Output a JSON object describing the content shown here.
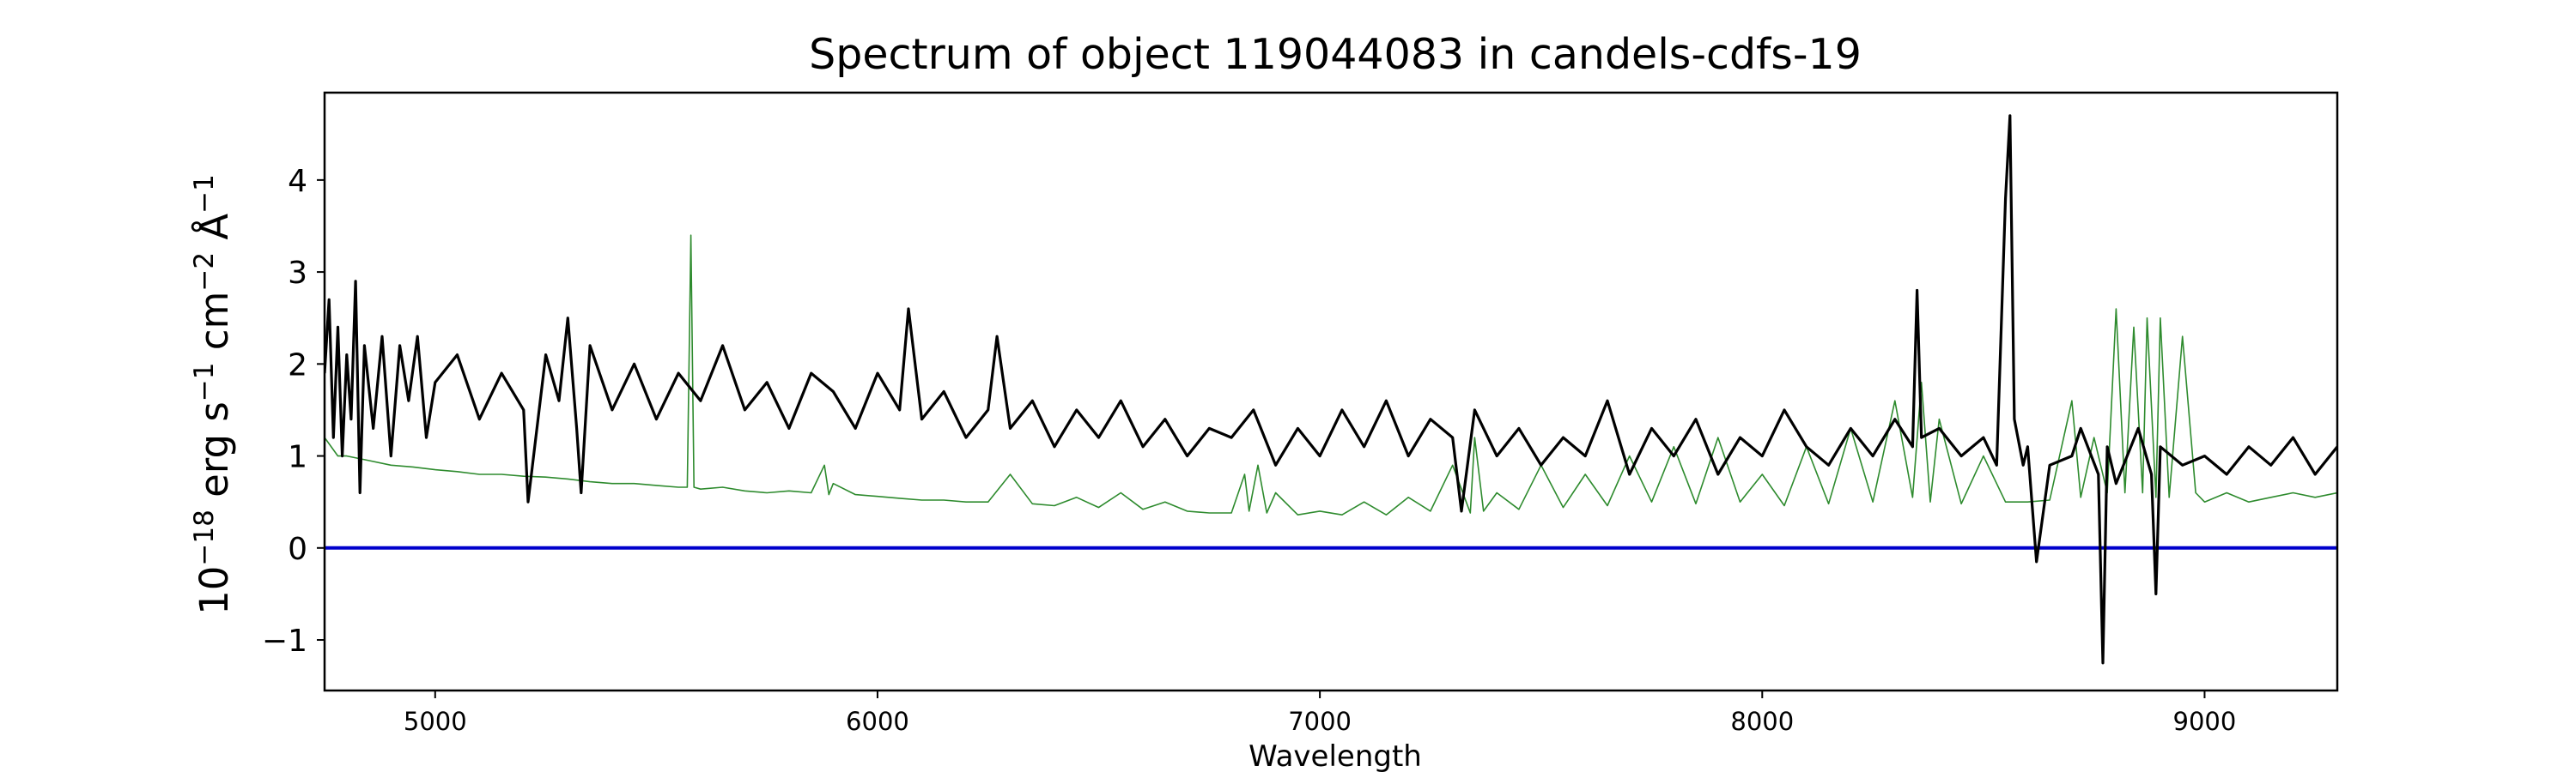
{
  "chart_data": {
    "type": "line",
    "title": "Spectrum of object 119044083 in candels-cdfs-19",
    "xlabel": "Wavelength",
    "ylabel": "10−18 erg s−1 cm−2 Å−1",
    "ylabel_parts": {
      "base": "10",
      "exp1": "−18",
      "t1": " erg s",
      "exp2": "−1",
      "t2": " cm",
      "exp3": "−2",
      "t3": " Å",
      "exp4": "−1"
    },
    "xlim": [
      4750,
      9300
    ],
    "ylim": [
      -1.55,
      4.95
    ],
    "xticks": [
      5000,
      6000,
      7000,
      8000,
      9000
    ],
    "yticks": [
      -1,
      0,
      1,
      2,
      3,
      4
    ],
    "grid": false,
    "legend": "none",
    "series": [
      {
        "role": "flux",
        "color": "#000000",
        "x": [
          4750,
          4760,
          4770,
          4780,
          4790,
          4800,
          4810,
          4820,
          4830,
          4840,
          4860,
          4880,
          4900,
          4920,
          4940,
          4960,
          4980,
          5000,
          5050,
          5100,
          5150,
          5200,
          5210,
          5250,
          5280,
          5300,
          5320,
          5330,
          5350,
          5400,
          5450,
          5500,
          5550,
          5600,
          5650,
          5700,
          5750,
          5800,
          5850,
          5900,
          5950,
          6000,
          6050,
          6070,
          6100,
          6150,
          6200,
          6250,
          6270,
          6300,
          6350,
          6400,
          6450,
          6500,
          6550,
          6600,
          6650,
          6700,
          6750,
          6800,
          6850,
          6900,
          6950,
          7000,
          7050,
          7100,
          7150,
          7200,
          7250,
          7300,
          7320,
          7350,
          7400,
          7450,
          7500,
          7550,
          7600,
          7650,
          7700,
          7750,
          7800,
          7850,
          7900,
          7950,
          8000,
          8050,
          8100,
          8150,
          8200,
          8250,
          8300,
          8340,
          8350,
          8360,
          8400,
          8450,
          8500,
          8530,
          8550,
          8560,
          8570,
          8590,
          8600,
          8620,
          8650,
          8700,
          8720,
          8760,
          8770,
          8780,
          8800,
          8850,
          8880,
          8890,
          8900,
          8950,
          9000,
          9050,
          9100,
          9150,
          9200,
          9250,
          9300
        ],
        "y": [
          1.9,
          2.7,
          1.2,
          2.4,
          1.0,
          2.1,
          1.4,
          2.9,
          0.6,
          2.2,
          1.3,
          2.3,
          1.0,
          2.2,
          1.6,
          2.3,
          1.2,
          1.8,
          2.1,
          1.4,
          1.9,
          1.5,
          0.5,
          2.1,
          1.6,
          2.5,
          1.3,
          0.6,
          2.2,
          1.5,
          2.0,
          1.4,
          1.9,
          1.6,
          2.2,
          1.5,
          1.8,
          1.3,
          1.9,
          1.7,
          1.3,
          1.9,
          1.5,
          2.6,
          1.4,
          1.7,
          1.2,
          1.5,
          2.3,
          1.3,
          1.6,
          1.1,
          1.5,
          1.2,
          1.6,
          1.1,
          1.4,
          1.0,
          1.3,
          1.2,
          1.5,
          0.9,
          1.3,
          1.0,
          1.5,
          1.1,
          1.6,
          1.0,
          1.4,
          1.2,
          0.4,
          1.5,
          1.0,
          1.3,
          0.9,
          1.2,
          1.0,
          1.6,
          0.8,
          1.3,
          1.0,
          1.4,
          0.8,
          1.2,
          1.0,
          1.5,
          1.1,
          0.9,
          1.3,
          1.0,
          1.4,
          1.1,
          2.8,
          1.2,
          1.3,
          1.0,
          1.2,
          0.9,
          3.8,
          4.7,
          1.4,
          0.9,
          1.1,
          -0.15,
          0.9,
          1.0,
          1.3,
          0.8,
          -1.25,
          1.1,
          0.7,
          1.3,
          0.8,
          -0.5,
          1.1,
          0.9,
          1.0,
          0.8,
          1.1,
          0.9,
          1.2,
          0.8,
          1.1
        ]
      },
      {
        "role": "sky",
        "color": "#2e8b2e",
        "x": [
          4750,
          4780,
          4800,
          4850,
          4900,
          4950,
          5000,
          5050,
          5100,
          5150,
          5200,
          5250,
          5300,
          5350,
          5400,
          5450,
          5500,
          5550,
          5570,
          5578,
          5585,
          5600,
          5650,
          5700,
          5750,
          5800,
          5850,
          5880,
          5890,
          5900,
          5950,
          6000,
          6050,
          6100,
          6150,
          6200,
          6250,
          6300,
          6350,
          6400,
          6450,
          6500,
          6550,
          6600,
          6650,
          6700,
          6750,
          6800,
          6830,
          6840,
          6860,
          6880,
          6900,
          6950,
          7000,
          7050,
          7100,
          7150,
          7200,
          7250,
          7300,
          7340,
          7350,
          7370,
          7400,
          7450,
          7500,
          7550,
          7600,
          7650,
          7700,
          7750,
          7800,
          7850,
          7900,
          7950,
          8000,
          8050,
          8100,
          8150,
          8200,
          8250,
          8300,
          8340,
          8360,
          8380,
          8400,
          8450,
          8500,
          8550,
          8600,
          8650,
          8700,
          8720,
          8750,
          8780,
          8800,
          8820,
          8840,
          8860,
          8870,
          8890,
          8900,
          8920,
          8950,
          8980,
          9000,
          9050,
          9100,
          9150,
          9200,
          9250,
          9300
        ],
        "y": [
          1.2,
          1.0,
          1.0,
          0.95,
          0.9,
          0.88,
          0.85,
          0.83,
          0.8,
          0.8,
          0.78,
          0.77,
          0.75,
          0.72,
          0.7,
          0.7,
          0.68,
          0.66,
          0.66,
          3.4,
          0.66,
          0.64,
          0.66,
          0.62,
          0.6,
          0.62,
          0.6,
          0.9,
          0.58,
          0.7,
          0.58,
          0.56,
          0.54,
          0.52,
          0.52,
          0.5,
          0.5,
          0.8,
          0.48,
          0.46,
          0.55,
          0.44,
          0.6,
          0.42,
          0.5,
          0.4,
          0.38,
          0.38,
          0.8,
          0.4,
          0.9,
          0.38,
          0.6,
          0.36,
          0.4,
          0.36,
          0.5,
          0.36,
          0.55,
          0.4,
          0.9,
          0.38,
          1.2,
          0.4,
          0.6,
          0.42,
          0.9,
          0.44,
          0.8,
          0.46,
          1.0,
          0.5,
          1.1,
          0.48,
          1.2,
          0.5,
          0.8,
          0.46,
          1.1,
          0.48,
          1.3,
          0.5,
          1.6,
          0.55,
          1.8,
          0.5,
          1.4,
          0.48,
          1.0,
          0.5,
          0.5,
          0.52,
          1.6,
          0.55,
          1.2,
          0.6,
          2.6,
          0.6,
          2.4,
          0.6,
          2.5,
          0.55,
          2.5,
          0.55,
          2.3,
          0.6,
          0.5,
          0.6,
          0.5,
          0.55,
          0.6,
          0.55,
          0.6
        ]
      },
      {
        "role": "zero",
        "color": "#0000cc",
        "x": [
          4750,
          9300
        ],
        "y": [
          0,
          0
        ]
      }
    ]
  }
}
